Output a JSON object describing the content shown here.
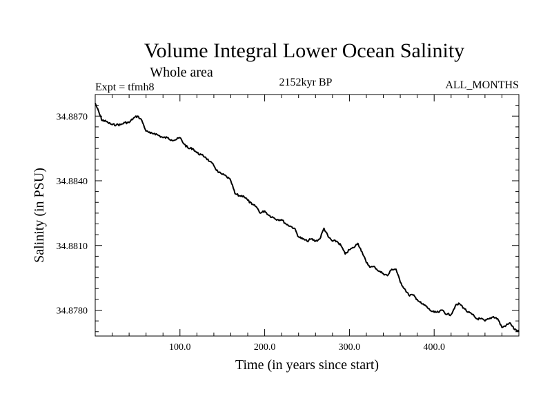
{
  "chart_data": {
    "type": "line",
    "title": "Volume Integral Lower Ocean Salinity",
    "subtitle": "Whole area",
    "experiment_label": "Expt = tfmh8",
    "period_label": "2152kyr BP",
    "months_label": "ALL_MONTHS",
    "xlabel": "Time (in years since start)",
    "ylabel": "Salinity (in PSU)",
    "xlim": [
      0,
      500
    ],
    "ylim": [
      34.8768,
      34.888
    ],
    "xticks": [
      100,
      200,
      300,
      400
    ],
    "xtick_labels": [
      "100.0",
      "200.0",
      "300.0",
      "400.0"
    ],
    "yticks": [
      34.878,
      34.881,
      34.884,
      34.887
    ],
    "ytick_labels": [
      "34.8780",
      "34.8810",
      "34.8840",
      "34.8870"
    ],
    "series": [
      {
        "name": "Salinity",
        "x": [
          0,
          5,
          8,
          10,
          15,
          20,
          25,
          30,
          35,
          40,
          45,
          50,
          55,
          60,
          65,
          70,
          75,
          80,
          85,
          90,
          95,
          100,
          105,
          110,
          115,
          120,
          125,
          130,
          135,
          140,
          145,
          150,
          155,
          160,
          165,
          170,
          175,
          180,
          185,
          190,
          195,
          200,
          205,
          210,
          215,
          220,
          225,
          230,
          235,
          240,
          245,
          250,
          255,
          260,
          265,
          270,
          275,
          280,
          285,
          290,
          295,
          300,
          305,
          310,
          315,
          320,
          325,
          330,
          335,
          340,
          345,
          350,
          355,
          360,
          365,
          370,
          375,
          380,
          385,
          390,
          395,
          400,
          405,
          410,
          415,
          420,
          425,
          430,
          435,
          440,
          445,
          450,
          455,
          460,
          465,
          470,
          475,
          480,
          485,
          490,
          495,
          500
        ],
        "values": [
          34.8876,
          34.8871,
          34.8868,
          34.8868,
          34.8867,
          34.8866,
          34.8866,
          34.8866,
          34.8867,
          34.8867,
          34.8869,
          34.887,
          34.8868,
          34.8863,
          34.8862,
          34.8862,
          34.8861,
          34.886,
          34.886,
          34.8859,
          34.8859,
          34.886,
          34.8857,
          34.8855,
          34.8855,
          34.8853,
          34.8852,
          34.8851,
          34.8849,
          34.8847,
          34.8844,
          34.8843,
          34.8842,
          34.884,
          34.8834,
          34.8833,
          34.8833,
          34.8831,
          34.8829,
          34.8828,
          34.8825,
          34.8826,
          34.8824,
          34.8823,
          34.8822,
          34.8822,
          34.882,
          34.8819,
          34.8818,
          34.8814,
          34.8813,
          34.8812,
          34.8813,
          34.8812,
          34.8813,
          34.8818,
          34.8814,
          34.8812,
          34.8812,
          34.881,
          34.8806,
          34.8808,
          34.8809,
          34.8811,
          34.8807,
          34.8802,
          34.88,
          34.88,
          34.8798,
          34.8797,
          34.8796,
          34.8799,
          34.8799,
          34.8793,
          34.879,
          34.8787,
          34.8787,
          34.8785,
          34.8783,
          34.8782,
          34.878,
          34.8779,
          34.8779,
          34.878,
          34.8778,
          34.8778,
          34.8782,
          34.8783,
          34.8781,
          34.8779,
          34.8778,
          34.8776,
          34.8776,
          34.8775,
          34.8776,
          34.8777,
          34.8776,
          34.8772,
          34.8773,
          34.8774,
          34.8771,
          34.877
        ]
      }
    ]
  }
}
